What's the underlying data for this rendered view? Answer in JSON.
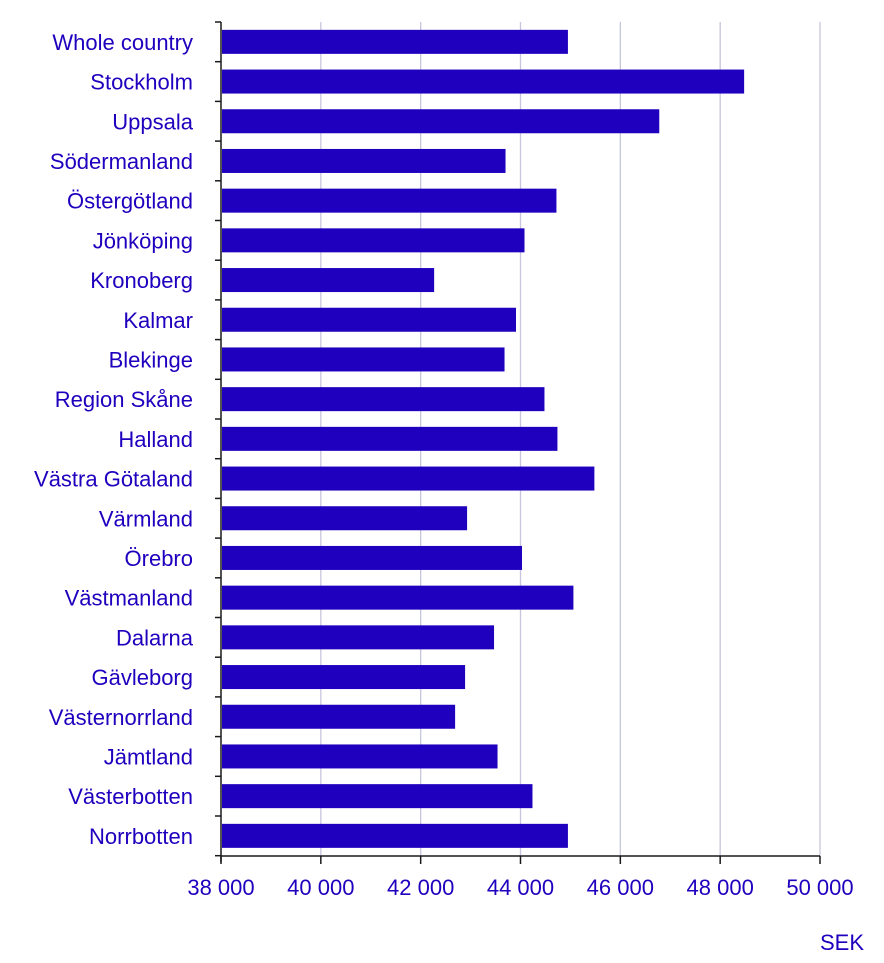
{
  "chart_data": {
    "type": "bar",
    "orientation": "horizontal",
    "categories": [
      "Whole country",
      "Stockholm",
      "Uppsala",
      "Södermanland",
      "Östergötland",
      "Jönköping",
      "Kronoberg",
      "Kalmar",
      "Blekinge",
      "Region Skåne",
      "Halland",
      "Västra Götaland",
      "Värmland",
      "Örebro",
      "Västmanland",
      "Dalarna",
      "Gävleborg",
      "Västernorrland",
      "Jämtland",
      "Västerbotten",
      "Norrbotten"
    ],
    "values": [
      44950,
      48480,
      46780,
      43700,
      44720,
      44080,
      42270,
      43910,
      43680,
      44480,
      44740,
      45480,
      42930,
      44030,
      45060,
      43470,
      42890,
      42690,
      43540,
      44240,
      44950
    ],
    "xlim": [
      38000,
      50000
    ],
    "xticks": [
      38000,
      40000,
      42000,
      44000,
      46000,
      48000,
      50000
    ],
    "xtick_labels": [
      "38 000",
      "40 000",
      "42 000",
      "44 000",
      "46 000",
      "48 000",
      "50 000"
    ],
    "unit_label": "SEK",
    "grid": "vertical",
    "legend": "none",
    "colors": {
      "bar": "#1e00be",
      "text": "#1e00be",
      "grid": "#c6c6dc",
      "axis": "#1a1a1a"
    }
  }
}
